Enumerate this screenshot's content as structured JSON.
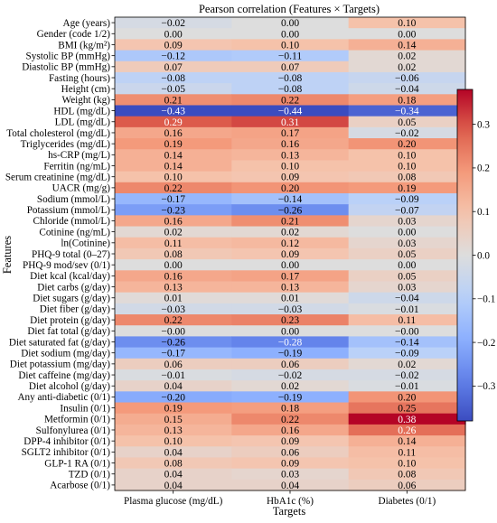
{
  "chart_data": {
    "type": "heatmap",
    "title": "Pearson correlation (Features × Targets)",
    "xlabel": "Targets",
    "ylabel": "Features",
    "columns": [
      "Plasma glucose (mg/dL)",
      "HbA1c (%)",
      "Diabetes (0/1)"
    ],
    "rows": [
      {
        "label": "Age (years)",
        "values": [
          -0.02,
          0.0,
          0.1
        ]
      },
      {
        "label": "Gender (code 1/2)",
        "values": [
          0.0,
          0.0,
          0.0
        ]
      },
      {
        "label": "BMI (kg/m²)",
        "values": [
          0.09,
          0.1,
          0.14
        ]
      },
      {
        "label": "Systolic BP (mmHg)",
        "values": [
          -0.12,
          -0.11,
          0.02
        ]
      },
      {
        "label": "Diastolic BP (mmHg)",
        "values": [
          0.07,
          0.07,
          0.02
        ]
      },
      {
        "label": "Fasting (hours)",
        "values": [
          -0.08,
          -0.08,
          -0.06
        ]
      },
      {
        "label": "Height (cm)",
        "values": [
          -0.05,
          -0.08,
          -0.04
        ]
      },
      {
        "label": "Weight (kg)",
        "values": [
          0.21,
          0.22,
          0.18
        ]
      },
      {
        "label": "HDL (mg/dL)",
        "values": [
          -0.43,
          -0.44,
          -0.34
        ]
      },
      {
        "label": "LDL (mg/dL)",
        "values": [
          0.29,
          0.31,
          0.05
        ]
      },
      {
        "label": "Total cholesterol (mg/dL)",
        "values": [
          0.16,
          0.17,
          -0.02
        ]
      },
      {
        "label": "Triglycerides (mg/dL)",
        "values": [
          0.19,
          0.16,
          0.2
        ]
      },
      {
        "label": "hs-CRP (mg/L)",
        "values": [
          0.14,
          0.13,
          0.1
        ]
      },
      {
        "label": "Ferritin (ng/mL)",
        "values": [
          0.14,
          0.1,
          0.1
        ]
      },
      {
        "label": "Serum creatinine (mg/dL)",
        "values": [
          0.1,
          0.09,
          0.08
        ]
      },
      {
        "label": "UACR (mg/g)",
        "values": [
          0.22,
          0.2,
          0.19
        ]
      },
      {
        "label": "Sodium (mmol/L)",
        "values": [
          -0.17,
          -0.14,
          -0.09
        ]
      },
      {
        "label": "Potassium (mmol/L)",
        "values": [
          -0.23,
          -0.26,
          -0.07
        ]
      },
      {
        "label": "Chloride (mmol/L)",
        "values": [
          0.16,
          0.21,
          0.03
        ]
      },
      {
        "label": "Cotinine (ng/mL)",
        "values": [
          0.02,
          0.02,
          0.0
        ]
      },
      {
        "label": "ln(Cotinine)",
        "values": [
          0.11,
          0.12,
          0.03
        ]
      },
      {
        "label": "PHQ-9 total (0–27)",
        "values": [
          0.08,
          0.09,
          0.05
        ]
      },
      {
        "label": "PHQ-9 mod/sev (0/1)",
        "values": [
          0.0,
          0.0,
          0.0
        ]
      },
      {
        "label": "Diet kcal (kcal/day)",
        "values": [
          0.16,
          0.17,
          0.05
        ]
      },
      {
        "label": "Diet carbs (g/day)",
        "values": [
          0.13,
          0.13,
          0.03
        ]
      },
      {
        "label": "Diet sugars (g/day)",
        "values": [
          0.01,
          0.01,
          -0.04
        ]
      },
      {
        "label": "Diet fiber (g/day)",
        "values": [
          -0.03,
          -0.03,
          -0.01
        ]
      },
      {
        "label": "Diet protein (g/day)",
        "values": [
          0.22,
          0.23,
          0.11
        ]
      },
      {
        "label": "Diet fat total (g/day)",
        "values": [
          -0.0,
          0.0,
          -0.0
        ]
      },
      {
        "label": "Diet saturated fat (g/day)",
        "values": [
          -0.26,
          -0.28,
          -0.14
        ]
      },
      {
        "label": "Diet sodium (mg/day)",
        "values": [
          -0.17,
          -0.19,
          -0.09
        ]
      },
      {
        "label": "Diet potassium (mg/day)",
        "values": [
          0.06,
          0.06,
          0.02
        ]
      },
      {
        "label": "Diet caffeine (mg/day)",
        "values": [
          -0.01,
          -0.02,
          -0.02
        ]
      },
      {
        "label": "Diet alcohol (g/day)",
        "values": [
          0.04,
          0.02,
          -0.01
        ]
      },
      {
        "label": "Any anti-diabetic (0/1)",
        "values": [
          -0.2,
          -0.19,
          0.2
        ]
      },
      {
        "label": "Insulin (0/1)",
        "values": [
          0.19,
          0.18,
          0.25
        ]
      },
      {
        "label": "Metformin (0/1)",
        "values": [
          0.15,
          0.22,
          0.38
        ]
      },
      {
        "label": "Sulfonylurea (0/1)",
        "values": [
          0.13,
          0.16,
          0.26
        ]
      },
      {
        "label": "DPP-4 inhibitor (0/1)",
        "values": [
          0.1,
          0.09,
          0.14
        ]
      },
      {
        "label": "SGLT2 inhibitor (0/1)",
        "values": [
          0.04,
          0.06,
          0.11
        ]
      },
      {
        "label": "GLP-1 RA (0/1)",
        "values": [
          0.08,
          0.09,
          0.1
        ]
      },
      {
        "label": "TZD (0/1)",
        "values": [
          0.04,
          0.03,
          0.08
        ]
      },
      {
        "label": "Acarbose (0/1)",
        "values": [
          0.04,
          0.04,
          0.06
        ]
      }
    ],
    "value_labels": [
      [
        "−0.02",
        "0.00",
        "0.10"
      ],
      [
        "0.00",
        "0.00",
        "0.00"
      ],
      [
        "0.09",
        "0.10",
        "0.14"
      ],
      [
        "−0.12",
        "−0.11",
        "0.02"
      ],
      [
        "0.07",
        "0.07",
        "0.02"
      ],
      [
        "−0.08",
        "−0.08",
        "−0.06"
      ],
      [
        "−0.05",
        "−0.08",
        "−0.04"
      ],
      [
        "0.21",
        "0.22",
        "0.18"
      ],
      [
        "−0.43",
        "−0.44",
        "−0.34"
      ],
      [
        "0.29",
        "0.31",
        "0.05"
      ],
      [
        "0.16",
        "0.17",
        "−0.02"
      ],
      [
        "0.19",
        "0.16",
        "0.20"
      ],
      [
        "0.14",
        "0.13",
        "0.10"
      ],
      [
        "0.14",
        "0.10",
        "0.10"
      ],
      [
        "0.10",
        "0.09",
        "0.08"
      ],
      [
        "0.22",
        "0.20",
        "0.19"
      ],
      [
        "−0.17",
        "−0.14",
        "−0.09"
      ],
      [
        "−0.23",
        "−0.26",
        "−0.07"
      ],
      [
        "0.16",
        "0.21",
        "0.03"
      ],
      [
        "0.02",
        "0.02",
        "0.00"
      ],
      [
        "0.11",
        "0.12",
        "0.03"
      ],
      [
        "0.08",
        "0.09",
        "0.05"
      ],
      [
        "0.00",
        "0.00",
        "0.00"
      ],
      [
        "0.16",
        "0.17",
        "0.05"
      ],
      [
        "0.13",
        "0.13",
        "0.03"
      ],
      [
        "0.01",
        "0.01",
        "−0.04"
      ],
      [
        "−0.03",
        "−0.03",
        "−0.01"
      ],
      [
        "0.22",
        "0.23",
        "0.11"
      ],
      [
        "−0.00",
        "0.00",
        "−0.00"
      ],
      [
        "−0.26",
        "−0.28",
        "−0.14"
      ],
      [
        "−0.17",
        "−0.19",
        "−0.09"
      ],
      [
        "0.06",
        "0.06",
        "0.02"
      ],
      [
        "−0.01",
        "−0.02",
        "−0.02"
      ],
      [
        "0.04",
        "0.02",
        "−0.01"
      ],
      [
        "−0.20",
        "−0.19",
        "0.20"
      ],
      [
        "0.19",
        "0.18",
        "0.25"
      ],
      [
        "0.15",
        "0.22",
        "0.38"
      ],
      [
        "0.13",
        "0.16",
        "0.26"
      ],
      [
        "0.10",
        "0.09",
        "0.14"
      ],
      [
        "0.04",
        "0.06",
        "0.11"
      ],
      [
        "0.08",
        "0.09",
        "0.10"
      ],
      [
        "0.04",
        "0.03",
        "0.08"
      ],
      [
        "0.04",
        "0.04",
        "0.06"
      ]
    ],
    "colorscale": "coolwarm",
    "vmin": -0.38,
    "vmax": 0.38,
    "colorbar_ticks": [
      0.3,
      0.2,
      0.1,
      0.0,
      -0.1,
      -0.2,
      -0.3
    ],
    "colorbar_tick_labels": [
      "0.3",
      "0.2",
      "0.1",
      "0.0",
      "−0.1",
      "−0.2",
      "−0.3"
    ],
    "grid": false
  }
}
